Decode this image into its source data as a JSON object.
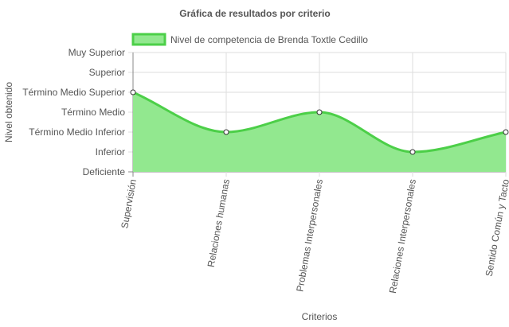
{
  "chart_data": {
    "type": "area",
    "title": "Gráfica de resultados por criterio",
    "xlabel": "Criterios",
    "ylabel": "Nivel obtenido",
    "y_levels": [
      "Deficiente",
      "Inferior",
      "Término Medio Inferior",
      "Término Medio",
      "Término Medio Superior",
      "Superior",
      "Muy Superior"
    ],
    "categories": [
      "Supervisión",
      "Relaciones humanas",
      "Problemas Interpersonales",
      "Relaciones Interpersonales",
      "Sentido Común y Tacto"
    ],
    "series": [
      {
        "name": "Nivel de competencia de Brenda Toxtle Cedillo",
        "values": [
          "Término Medio Superior",
          "Término Medio Inferior",
          "Término Medio",
          "Inferior",
          "Término Medio Inferior"
        ],
        "line_color": "#4ccf48",
        "fill_color": "#92e88f"
      }
    ],
    "legend_position": "top",
    "grid": true
  }
}
